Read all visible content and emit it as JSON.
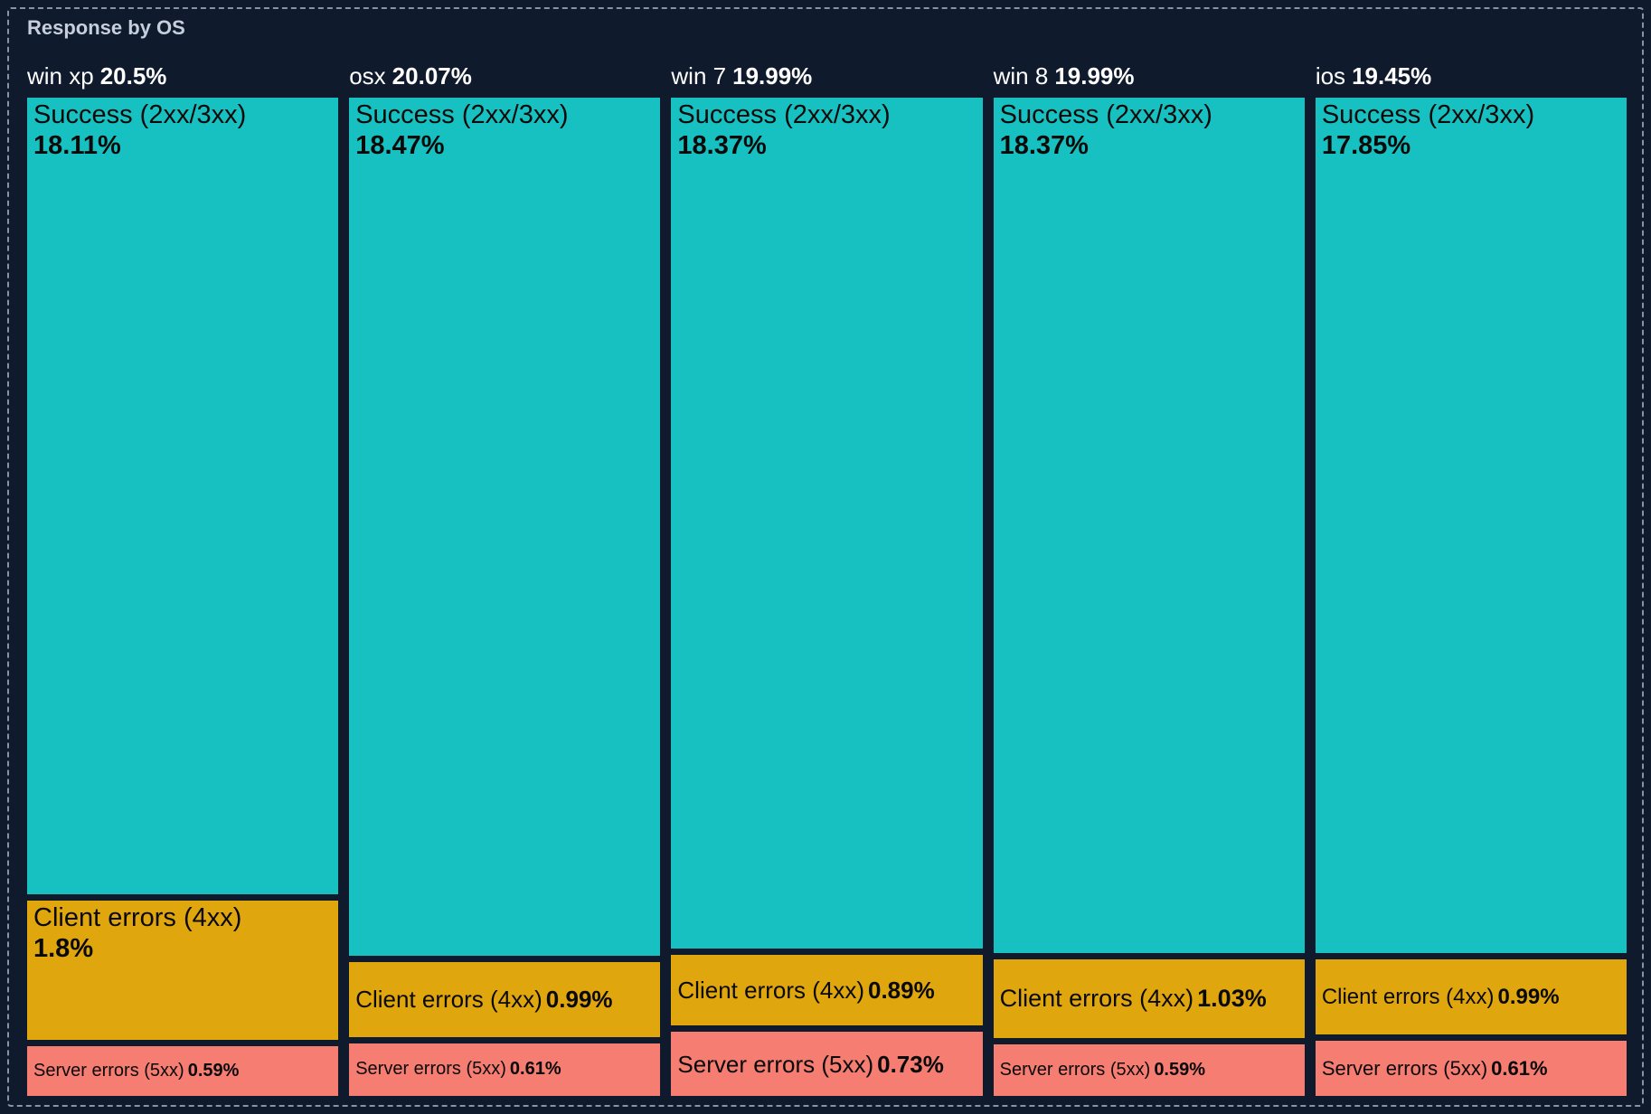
{
  "panel": {
    "title": "Response by OS"
  },
  "chart_data": {
    "type": "treemap",
    "title": "Response by OS",
    "orientation": "vertical-columns",
    "layout_note": "5 equal-width columns, one per OS; segment heights proportional to percentage of column total",
    "colors": {
      "success": "#18c1c1",
      "client": "#e0a60e",
      "server": "#f57d71",
      "background": "#0f1b2c",
      "title_text": "#c7cfdd",
      "header_text": "#ffffff",
      "segment_text": "#0a0a0a",
      "border_dashed": "#8494ab"
    },
    "groups": [
      {
        "os": "win xp",
        "total_pct": "20.5%",
        "total_value": 20.5,
        "segments": [
          {
            "name": "Success (2xx/3xx)",
            "pct": "18.11%",
            "value": 18.11
          },
          {
            "name": "Client errors (4xx)",
            "pct": "1.8%",
            "value": 1.8
          },
          {
            "name": "Server errors (5xx)",
            "pct": "0.59%",
            "value": 0.59
          }
        ]
      },
      {
        "os": "osx",
        "total_pct": "20.07%",
        "total_value": 20.07,
        "segments": [
          {
            "name": "Success (2xx/3xx)",
            "pct": "18.47%",
            "value": 18.47
          },
          {
            "name": "Client errors (4xx)",
            "pct": "0.99%",
            "value": 0.99
          },
          {
            "name": "Server errors (5xx)",
            "pct": "0.61%",
            "value": 0.61
          }
        ]
      },
      {
        "os": "win 7",
        "total_pct": "19.99%",
        "total_value": 19.99,
        "segments": [
          {
            "name": "Success (2xx/3xx)",
            "pct": "18.37%",
            "value": 18.37
          },
          {
            "name": "Client errors (4xx)",
            "pct": "0.89%",
            "value": 0.89
          },
          {
            "name": "Server errors (5xx)",
            "pct": "0.73%",
            "value": 0.73
          }
        ]
      },
      {
        "os": "win 8",
        "total_pct": "19.99%",
        "total_value": 19.99,
        "segments": [
          {
            "name": "Success (2xx/3xx)",
            "pct": "18.37%",
            "value": 18.37
          },
          {
            "name": "Client errors (4xx)",
            "pct": "1.03%",
            "value": 1.03
          },
          {
            "name": "Server errors (5xx)",
            "pct": "0.59%",
            "value": 0.59
          }
        ]
      },
      {
        "os": "ios",
        "total_pct": "19.45%",
        "total_value": 19.45,
        "segments": [
          {
            "name": "Success (2xx/3xx)",
            "pct": "17.85%",
            "value": 17.85
          },
          {
            "name": "Client errors (4xx)",
            "pct": "0.99%",
            "value": 0.99
          },
          {
            "name": "Server errors (5xx)",
            "pct": "0.61%",
            "value": 0.61
          }
        ]
      }
    ]
  }
}
